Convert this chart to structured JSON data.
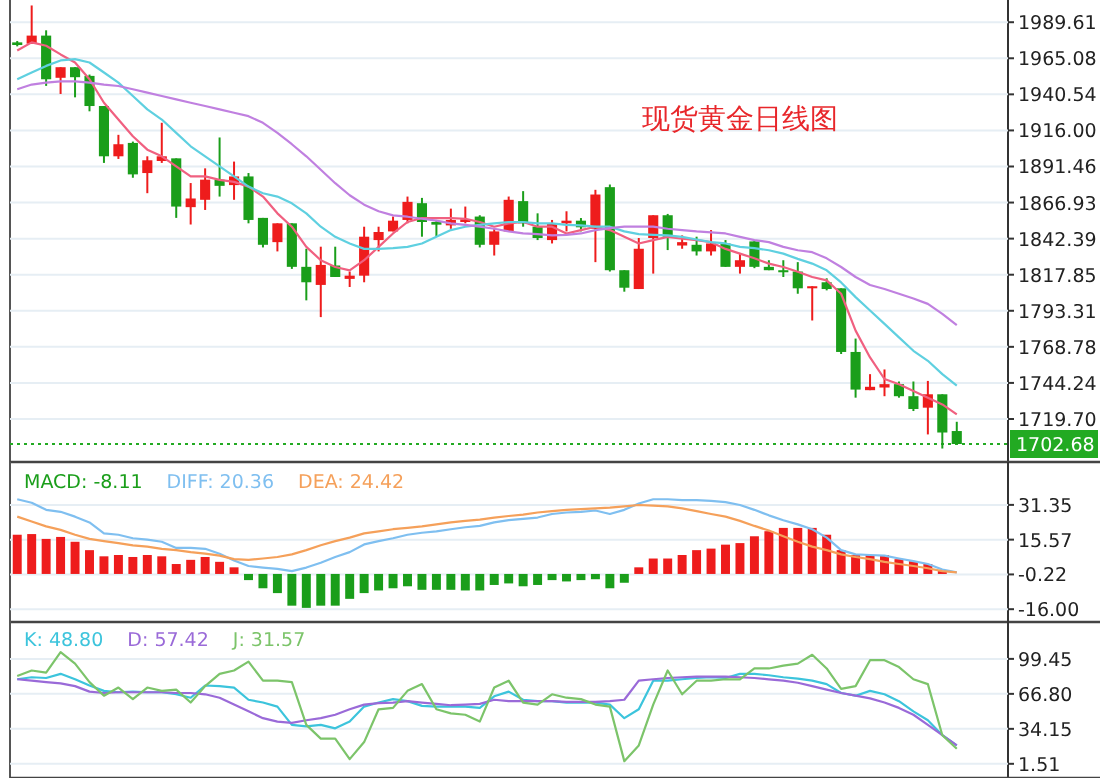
{
  "chart_data": [
    {
      "type": "candlestick",
      "title": "现货黄金日线图",
      "categories": [
        null,
        null,
        null,
        null,
        null,
        null,
        null,
        null,
        null,
        null,
        null,
        null,
        null,
        null,
        null,
        null,
        null,
        null,
        null,
        null,
        null,
        null,
        null,
        null,
        null,
        null,
        null,
        null,
        null,
        null,
        null,
        null,
        null,
        null,
        null,
        null,
        null,
        null,
        null,
        null,
        null,
        null,
        null,
        null,
        null,
        null,
        null,
        null,
        null,
        null,
        null,
        null,
        null,
        null,
        null,
        null,
        null,
        null,
        null,
        null,
        null,
        null,
        null,
        null,
        null,
        null
      ],
      "ohlc": [
        [
          1975.9,
          1976.8,
          1973.2,
          1974.1
        ],
        [
          1975.0,
          2001.0,
          1975.0,
          1980.5
        ],
        [
          1980.5,
          1984.1,
          1946.3,
          1950.8
        ],
        [
          1951.8,
          1959.0,
          1940.8,
          1959.0
        ],
        [
          1959.0,
          1959.0,
          1938.5,
          1952.2
        ],
        [
          1953.1,
          1954.0,
          1929.0,
          1932.6
        ],
        [
          1932.6,
          1932.6,
          1893.9,
          1898.4
        ],
        [
          1898.4,
          1913.0,
          1896.6,
          1906.6
        ],
        [
          1907.5,
          1908.4,
          1883.8,
          1886.1
        ],
        [
          1887.0,
          1898.4,
          1873.3,
          1895.7
        ],
        [
          1895.2,
          1921.2,
          1893.9,
          1898.4
        ],
        [
          1897.0,
          1897.0,
          1856.5,
          1864.2
        ],
        [
          1863.8,
          1880.2,
          1852.0,
          1869.7
        ],
        [
          1868.8,
          1890.2,
          1861.9,
          1882.5
        ],
        [
          1882.5,
          1911.2,
          1871.0,
          1878.3
        ],
        [
          1878.8,
          1894.8,
          1868.8,
          1884.7
        ],
        [
          1884.7,
          1887.0,
          1852.8,
          1855.1
        ],
        [
          1856.5,
          1856.5,
          1836.4,
          1838.2
        ],
        [
          1840.0,
          1852.8,
          1833.7,
          1852.8
        ],
        [
          1852.8,
          1852.8,
          1821.8,
          1823.2
        ],
        [
          1823.2,
          1835.5,
          1800.4,
          1812.7
        ],
        [
          1810.9,
          1836.9,
          1789.0,
          1824.5
        ],
        [
          1824.1,
          1836.9,
          1816.3,
          1816.3
        ],
        [
          1815.0,
          1820.0,
          1809.5,
          1817.2
        ],
        [
          1817.2,
          1850.5,
          1812.7,
          1843.7
        ],
        [
          1841.4,
          1850.5,
          1833.7,
          1846.9
        ],
        [
          1847.3,
          1857.4,
          1847.3,
          1854.6
        ],
        [
          1855.1,
          1871.0,
          1852.8,
          1867.4
        ],
        [
          1866.5,
          1870.1,
          1843.7,
          1853.7
        ],
        [
          1853.7,
          1855.1,
          1843.7,
          1851.9
        ],
        [
          1851.4,
          1862.8,
          1849.1,
          1855.1
        ],
        [
          1853.7,
          1864.2,
          1852.8,
          1855.5
        ],
        [
          1857.4,
          1858.3,
          1836.4,
          1838.2
        ],
        [
          1838.2,
          1849.1,
          1830.9,
          1847.3
        ],
        [
          1847.3,
          1871.0,
          1847.3,
          1868.8
        ],
        [
          1867.9,
          1874.7,
          1850.5,
          1852.8
        ],
        [
          1850.5,
          1859.6,
          1841.4,
          1842.8
        ],
        [
          1841.4,
          1855.1,
          1839.1,
          1852.8
        ],
        [
          1852.8,
          1861.0,
          1847.3,
          1854.6
        ],
        [
          1854.6,
          1856.4,
          1847.3,
          1850.1
        ],
        [
          1849.1,
          1875.6,
          1826.4,
          1872.4
        ],
        [
          1877.4,
          1879.2,
          1820.0,
          1820.9
        ],
        [
          1820.9,
          1820.9,
          1806.3,
          1809.0
        ],
        [
          1808.1,
          1842.8,
          1808.1,
          1835.5
        ],
        [
          1842.8,
          1858.3,
          1818.6,
          1858.3
        ],
        [
          1858.3,
          1859.2,
          1834.6,
          1843.7
        ],
        [
          1837.7,
          1844.6,
          1835.5,
          1840.0
        ],
        [
          1838.2,
          1843.7,
          1830.9,
          1833.7
        ],
        [
          1833.7,
          1848.2,
          1830.9,
          1839.1
        ],
        [
          1839.1,
          1841.4,
          1823.2,
          1823.2
        ],
        [
          1823.2,
          1832.3,
          1818.6,
          1827.7
        ],
        [
          1840.5,
          1841.4,
          1822.3,
          1823.2
        ],
        [
          1823.2,
          1827.7,
          1820.9,
          1820.9
        ],
        [
          1820.9,
          1827.7,
          1816.3,
          1819.5
        ],
        [
          1820.0,
          1826.4,
          1804.9,
          1808.6
        ],
        [
          1808.6,
          1810.0,
          1786.7,
          1810.0
        ],
        [
          1812.7,
          1815.4,
          1807.2,
          1808.1
        ],
        [
          1808.6,
          1808.6,
          1763.9,
          1765.3
        ],
        [
          1765.3,
          1774.4,
          1734.2,
          1739.7
        ],
        [
          1739.3,
          1750.2,
          1739.3,
          1741.6
        ],
        [
          1741.1,
          1753.4,
          1735.2,
          1743.4
        ],
        [
          1743.4,
          1745.2,
          1734.2,
          1735.2
        ],
        [
          1735.2,
          1745.2,
          1725.1,
          1726.5
        ],
        [
          1727.4,
          1745.6,
          1709.2,
          1736.5
        ],
        [
          1736.5,
          1736.5,
          1699.6,
          1710.5
        ],
        [
          1711.5,
          1717.8,
          1702.68,
          1702.68
        ]
      ],
      "series": [
        {
          "type": "line",
          "color": "#f06080",
          "values": [
            1970.4,
            1975.9,
            1973.6,
            1967.7,
            1962.2,
            1950.8,
            1934.8,
            1923.4,
            1912.0,
            1902.9,
            1898.4,
            1891.5,
            1884.7,
            1884.7,
            1882.4,
            1881.0,
            1877.8,
            1871.0,
            1859.6,
            1850.5,
            1836.8,
            1827.7,
            1823.1,
            1820.8,
            1827.7,
            1836.8,
            1845.9,
            1853.7,
            1856.4,
            1856.4,
            1856.4,
            1855.9,
            1853.7,
            1850.5,
            1852.8,
            1853.7,
            1850.5,
            1850.5,
            1845.9,
            1848.2,
            1850.5,
            1848.2,
            1843.6,
            1839.1,
            1841.4,
            1843.6,
            1842.3,
            1841.4,
            1840.0,
            1835.4,
            1832.2,
            1829.0,
            1825.4,
            1823.1,
            1819.9,
            1816.3,
            1814.0,
            1804.9,
            1779.8,
            1761.6,
            1746.9,
            1743.3,
            1738.8,
            1734.2,
            1729.6,
            1722.8
          ]
        },
        {
          "type": "line",
          "color": "#5fd0e0",
          "values": [
            1950.8,
            1955.4,
            1959.9,
            1963.6,
            1964.5,
            1962.2,
            1955.4,
            1948.5,
            1939.4,
            1930.3,
            1923.4,
            1914.3,
            1905.2,
            1898.4,
            1891.5,
            1884.7,
            1877.8,
            1873.3,
            1871.0,
            1866.4,
            1859.6,
            1850.5,
            1843.6,
            1839.1,
            1835.4,
            1835.4,
            1835.9,
            1836.8,
            1839.1,
            1843.6,
            1848.2,
            1850.5,
            1851.8,
            1852.8,
            1853.7,
            1853.7,
            1852.8,
            1852.8,
            1851.8,
            1851.4,
            1850.5,
            1850.5,
            1847.3,
            1845.5,
            1845.0,
            1844.6,
            1843.6,
            1841.8,
            1840.0,
            1839.1,
            1836.8,
            1835.9,
            1834.5,
            1832.2,
            1828.6,
            1825.4,
            1820.8,
            1812.6,
            1802.6,
            1793.5,
            1784.4,
            1775.2,
            1766.1,
            1759.3,
            1750.2,
            1742.4
          ]
        },
        {
          "type": "line",
          "color": "#c080e0",
          "values": [
            1944.0,
            1947.2,
            1948.5,
            1949.4,
            1949.4,
            1948.5,
            1947.2,
            1946.2,
            1944.0,
            1941.7,
            1939.4,
            1937.1,
            1934.8,
            1932.6,
            1930.3,
            1928.0,
            1925.7,
            1921.2,
            1914.3,
            1906.6,
            1898.4,
            1889.2,
            1880.1,
            1871.9,
            1865.5,
            1861.0,
            1858.2,
            1857.3,
            1855.9,
            1854.6,
            1852.8,
            1851.8,
            1850.5,
            1849.1,
            1847.3,
            1845.9,
            1845.5,
            1844.6,
            1845.0,
            1845.9,
            1848.2,
            1849.6,
            1850.5,
            1850.5,
            1850.5,
            1849.1,
            1848.2,
            1847.3,
            1846.7,
            1845.9,
            1843.6,
            1841.4,
            1840.0,
            1836.8,
            1834.5,
            1833.2,
            1829.0,
            1823.1,
            1816.3,
            1810.8,
            1808.1,
            1804.9,
            1801.7,
            1798.0,
            1791.2,
            1783.5
          ]
        }
      ],
      "ylim": [
        1693.16,
        2002
      ],
      "yticks": [
        1989.61,
        1965.08,
        1940.54,
        {
          "value": 1916,
          "label": "1916.00"
        },
        1891.46,
        1866.93,
        1842.39,
        1817.85,
        1793.31,
        1768.78,
        1744.24,
        {
          "value": 1719.7,
          "label": "1719.70"
        }
      ],
      "grid": "y",
      "tick_labels": "y",
      "ref_lines": [
        {
          "axis": "y",
          "value": 1702.68,
          "label": "1702.68",
          "color": "#22aa22",
          "line_style": "dotted"
        }
      ]
    },
    {
      "type": "bar",
      "categories": [
        null,
        null,
        null,
        null,
        null,
        null,
        null,
        null,
        null,
        null,
        null,
        null,
        null,
        null,
        null,
        null,
        null,
        null,
        null,
        null,
        null,
        null,
        null,
        null,
        null,
        null,
        null,
        null,
        null,
        null,
        null,
        null,
        null,
        null,
        null,
        null,
        null,
        null,
        null,
        null,
        null,
        null,
        null,
        null,
        null,
        null,
        null,
        null,
        null,
        null,
        null,
        null,
        null,
        null,
        null,
        null,
        null,
        null,
        null,
        null,
        null,
        null,
        null,
        null,
        null,
        null
      ],
      "series": [
        {
          "name": "MACD: -8.11",
          "type": "bar",
          "color": "#1a9e1a",
          "values": [
            17.8,
            18.1,
            15.9,
            16.8,
            14.6,
            10.8,
            8.0,
            8.6,
            7.7,
            8.6,
            8.0,
            4.5,
            6.4,
            7.7,
            5.5,
            3.0,
            -2.8,
            -6.5,
            -8.7,
            -14.4,
            -15.4,
            -14.4,
            -14.4,
            -11.3,
            -8.7,
            -7.5,
            -6.5,
            -5.6,
            -7.2,
            -7.2,
            -7.2,
            -7.5,
            -7.5,
            -5.0,
            -4.3,
            -5.6,
            -5.0,
            -2.8,
            -3.4,
            -2.8,
            -2.4,
            -6.5,
            -4.0,
            3.0,
            7.0,
            7.0,
            8.6,
            10.8,
            11.5,
            13.3,
            14.0,
            17.1,
            19.4,
            20.9,
            20.9,
            20.9,
            17.8,
            10.8,
            8.6,
            8.6,
            8.6,
            6.7,
            5.8,
            4.5,
            1.3,
            0
          ],
          "colors": [
            "#ee1c1c",
            "#ee1c1c",
            "#ee1c1c",
            "#ee1c1c",
            "#ee1c1c",
            "#ee1c1c",
            "#ee1c1c",
            "#ee1c1c",
            "#ee1c1c",
            "#ee1c1c",
            "#ee1c1c",
            "#ee1c1c",
            "#ee1c1c",
            "#ee1c1c",
            "#ee1c1c",
            "#ee1c1c",
            "#1a9e1a",
            "#1a9e1a",
            "#1a9e1a",
            "#1a9e1a",
            "#1a9e1a",
            "#1a9e1a",
            "#1a9e1a",
            "#1a9e1a",
            "#1a9e1a",
            "#1a9e1a",
            "#1a9e1a",
            "#1a9e1a",
            "#1a9e1a",
            "#1a9e1a",
            "#1a9e1a",
            "#1a9e1a",
            "#1a9e1a",
            "#1a9e1a",
            "#1a9e1a",
            "#1a9e1a",
            "#1a9e1a",
            "#1a9e1a",
            "#1a9e1a",
            "#1a9e1a",
            "#1a9e1a",
            "#1a9e1a",
            "#1a9e1a",
            "#ee1c1c",
            "#ee1c1c",
            "#ee1c1c",
            "#ee1c1c",
            "#ee1c1c",
            "#ee1c1c",
            "#ee1c1c",
            "#ee1c1c",
            "#ee1c1c",
            "#ee1c1c",
            "#ee1c1c",
            "#ee1c1c",
            "#ee1c1c",
            "#ee1c1c",
            "#ee1c1c",
            "#ee1c1c",
            "#ee1c1c",
            "#ee1c1c",
            "#ee1c1c",
            "#ee1c1c",
            "#ee1c1c",
            "#ee1c1c",
            "#ee1c1c"
          ]
        },
        {
          "name": "DIFF: 20.36",
          "type": "line",
          "color": "#7fbff0",
          "values": [
            33.9,
            32.3,
            29.1,
            28.2,
            26.0,
            23.4,
            18.4,
            17.8,
            16.2,
            15.6,
            14.6,
            11.8,
            11.8,
            11.4,
            9.2,
            6.1,
            3.6,
            2.9,
            2.3,
            1.3,
            2.9,
            5.1,
            7.7,
            9.9,
            13.4,
            14.9,
            16.2,
            17.8,
            18.7,
            19.3,
            20.3,
            21.2,
            21.8,
            23.4,
            24.4,
            25.0,
            25.6,
            27.2,
            27.9,
            28.2,
            28.8,
            27.2,
            29.1,
            32.0,
            33.9,
            33.9,
            33.5,
            33.5,
            33.2,
            32.6,
            31.3,
            29.1,
            26.6,
            24.4,
            22.5,
            20.3,
            16.5,
            10.8,
            8.9,
            8.6,
            8.3,
            7.0,
            5.8,
            4.5,
            2.0,
            0.7
          ]
        },
        {
          "name": "DEA: 24.42",
          "type": "line",
          "color": "#f5a05a",
          "values": [
            26.0,
            23.8,
            21.6,
            20.0,
            17.8,
            15.9,
            14.9,
            14.0,
            13.0,
            12.4,
            11.4,
            10.8,
            9.9,
            9.2,
            8.3,
            6.7,
            6.4,
            7.0,
            7.7,
            8.9,
            10.8,
            13.0,
            14.9,
            16.5,
            18.4,
            19.3,
            20.3,
            20.9,
            21.6,
            22.5,
            23.4,
            24.1,
            24.7,
            25.6,
            26.3,
            26.9,
            27.9,
            28.5,
            29.1,
            29.4,
            29.8,
            30.1,
            30.7,
            31.3,
            31.0,
            30.7,
            29.8,
            28.5,
            27.2,
            26.0,
            24.1,
            21.8,
            19.7,
            17.1,
            14.6,
            12.4,
            10.8,
            8.9,
            7.7,
            6.7,
            5.5,
            4.5,
            3.6,
            2.6,
            1.3,
            0.7
          ]
        }
      ],
      "ylim": [
        -20,
        49
      ],
      "yticks": [
        31.35,
        15.57,
        -0.22,
        {
          "value": -16,
          "label": "-16.00"
        }
      ],
      "grid": "y",
      "tick_labels": "y",
      "legend": "top left"
    },
    {
      "type": "line",
      "categories": [
        null,
        null,
        null,
        null,
        null,
        null,
        null,
        null,
        null,
        null,
        null,
        null,
        null,
        null,
        null,
        null,
        null,
        null,
        null,
        null,
        null,
        null,
        null,
        null,
        null,
        null,
        null,
        null,
        null,
        null,
        null,
        null,
        null,
        null,
        null,
        null,
        null,
        null,
        null,
        null,
        null,
        null,
        null,
        null,
        null,
        null,
        null,
        null,
        null,
        null,
        null,
        null,
        null,
        null,
        null,
        null,
        null,
        null,
        null,
        null,
        null,
        null,
        null,
        null,
        null,
        null
      ],
      "series": [
        {
          "name": "K: 48.80",
          "color": "#3cc4dc",
          "values": [
            80.4,
            82.3,
            81.6,
            85.5,
            80.4,
            74.6,
            69.6,
            68.3,
            68.9,
            68.3,
            68.3,
            66.4,
            63.2,
            74.6,
            74.0,
            72.7,
            61.3,
            58.7,
            54.9,
            37.8,
            36.5,
            37.8,
            34.6,
            40.9,
            54.9,
            58.7,
            61.9,
            60.0,
            55.6,
            54.9,
            54.9,
            54.9,
            53.7,
            64.5,
            68.9,
            61.3,
            60.0,
            60.0,
            58.7,
            58.7,
            58.7,
            56.8,
            44.1,
            52.4,
            79.1,
            79.1,
            80.4,
            81.6,
            82.3,
            81.6,
            85.5,
            85.5,
            84.2,
            82.3,
            81.0,
            79.1,
            75.9,
            67.6,
            65.1,
            69.6,
            66.4,
            60.0,
            50.5,
            42.2,
            28.2,
            18.7
          ]
        },
        {
          "name": "D: 57.42",
          "color": "#9a6ad8",
          "values": [
            80.4,
            79.1,
            77.8,
            76.6,
            74.0,
            68.9,
            67.6,
            68.3,
            68.3,
            68.3,
            68.3,
            67.6,
            67.6,
            66.4,
            63.2,
            56.8,
            50.5,
            44.1,
            40.9,
            39.7,
            42.2,
            44.1,
            47.3,
            52.4,
            56.8,
            58.1,
            58.7,
            60.0,
            58.7,
            57.5,
            56.2,
            56.8,
            57.5,
            61.3,
            60.0,
            60.0,
            60.0,
            60.0,
            59.4,
            59.4,
            59.4,
            60.0,
            61.3,
            79.1,
            80.4,
            81.6,
            82.3,
            82.9,
            82.9,
            82.9,
            82.3,
            81.6,
            80.4,
            79.1,
            77.2,
            74.0,
            70.8,
            67.6,
            65.1,
            62.6,
            58.7,
            53.7,
            47.3,
            37.8,
            28.2,
            18.7
          ]
        },
        {
          "name": "J: 31.57",
          "color": "#7cc46a",
          "values": [
            83.5,
            88.6,
            86.7,
            105.8,
            95.0,
            77.8,
            65.1,
            72.7,
            61.9,
            72.7,
            69.6,
            70.8,
            58.7,
            74.0,
            85.5,
            88.6,
            96.9,
            79.1,
            79.1,
            77.8,
            37.8,
            25.0,
            25.0,
            5.9,
            21.8,
            52.4,
            53.7,
            69.6,
            75.9,
            52.4,
            48.6,
            47.3,
            40.9,
            72.7,
            79.1,
            58.7,
            56.8,
            66.4,
            63.2,
            61.9,
            56.8,
            54.9,
            4.0,
            18.7,
            56.8,
            88.6,
            66.4,
            79.1,
            79.1,
            80.4,
            80.4,
            90.5,
            90.5,
            93.1,
            95.0,
            103.3,
            90.5,
            71.5,
            74.0,
            98.2,
            98.2,
            91.8,
            80.4,
            75.9,
            28.2,
            15.5
          ]
        }
      ],
      "ylim": [
        -8,
        132
      ],
      "yticks": [
        99.45,
        {
          "value": 66.8,
          "label": "66.80"
        },
        34.15,
        1.51
      ],
      "grid": "y",
      "tick_labels": "y",
      "legend": "top left"
    }
  ]
}
